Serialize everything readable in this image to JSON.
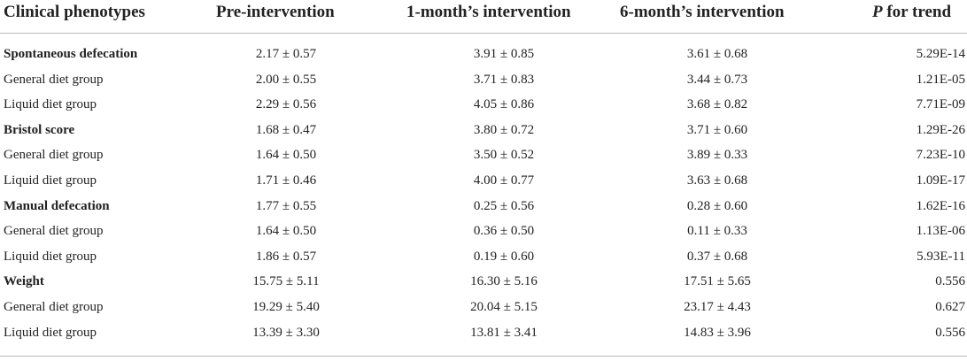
{
  "header": {
    "col0": "Clinical phenotypes",
    "col1": "Pre-intervention",
    "col2": "1-month’s intervention",
    "col3": "6-month’s intervention",
    "col4_italic": "P",
    "col4_rest": " for trend"
  },
  "rows": [
    {
      "label": "Spontaneous defecation",
      "group": true,
      "pre": "2.17 ± 0.57",
      "m1": "3.91 ± 0.85",
      "m6": "3.61 ± 0.68",
      "p": "5.29E-14"
    },
    {
      "label": "General diet group",
      "group": false,
      "pre": "2.00 ± 0.55",
      "m1": "3.71 ± 0.83",
      "m6": "3.44 ± 0.73",
      "p": "1.21E-05"
    },
    {
      "label": "Liquid diet group",
      "group": false,
      "pre": "2.29 ± 0.56",
      "m1": "4.05 ± 0.86",
      "m6": "3.68 ± 0.82",
      "p": "7.71E-09"
    },
    {
      "label": "Bristol score",
      "group": true,
      "pre": "1.68 ± 0.47",
      "m1": "3.80 ± 0.72",
      "m6": "3.71 ± 0.60",
      "p": "1.29E-26"
    },
    {
      "label": "General diet group",
      "group": false,
      "pre": "1.64 ± 0.50",
      "m1": "3.50 ± 0.52",
      "m6": "3.89 ± 0.33",
      "p": "7.23E-10"
    },
    {
      "label": "Liquid diet group",
      "group": false,
      "pre": "1.71 ± 0.46",
      "m1": "4.00 ± 0.77",
      "m6": "3.63 ± 0.68",
      "p": "1.09E-17"
    },
    {
      "label": "Manual defecation",
      "group": true,
      "pre": "1.77 ± 0.55",
      "m1": "0.25 ± 0.56",
      "m6": "0.28 ± 0.60",
      "p": "1.62E-16"
    },
    {
      "label": "General diet group",
      "group": false,
      "pre": "1.64 ± 0.50",
      "m1": "0.36 ± 0.50",
      "m6": "0.11 ± 0.33",
      "p": "1.13E-06"
    },
    {
      "label": "Liquid diet group",
      "group": false,
      "pre": "1.86 ± 0.57",
      "m1": "0.19 ± 0.60",
      "m6": "0.37 ± 0.68",
      "p": "5.93E-11"
    },
    {
      "label": "Weight",
      "group": true,
      "pre": "15.75 ± 5.11",
      "m1": "16.30 ± 5.16",
      "m6": "17.51 ± 5.65",
      "p": "0.556"
    },
    {
      "label": "General diet group",
      "group": false,
      "pre": "19.29 ± 5.40",
      "m1": "20.04 ± 5.15",
      "m6": "23.17 ± 4.43",
      "p": "0.627"
    },
    {
      "label": "Liquid diet group",
      "group": false,
      "pre": "13.39 ± 3.30",
      "m1": "13.81 ± 3.41",
      "m6": "14.83 ± 3.96",
      "p": "0.556"
    }
  ]
}
